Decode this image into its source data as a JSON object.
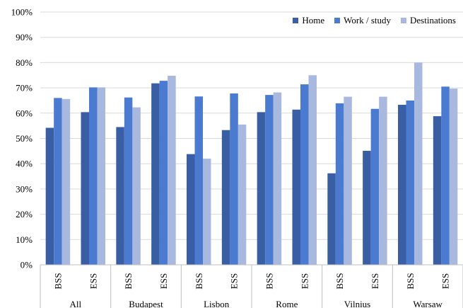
{
  "chart_data": {
    "type": "bar",
    "title": "",
    "xlabel": "",
    "ylabel": "",
    "ylim": [
      0,
      100
    ],
    "yticks": [
      0,
      10,
      20,
      30,
      40,
      50,
      60,
      70,
      80,
      90,
      100
    ],
    "ytick_labels": [
      "0%",
      "10%",
      "20%",
      "30%",
      "40%",
      "50%",
      "60%",
      "70%",
      "80%",
      "90%",
      "100%"
    ],
    "grid": true,
    "legend_position": "top-right",
    "groups": [
      "All",
      "Budapest",
      "Lisbon",
      "Rome",
      "Vilnius",
      "Warsaw"
    ],
    "subcategories": [
      "BSS",
      "ESS"
    ],
    "categories": [
      "All BSS",
      "All ESS",
      "Budapest BSS",
      "Budapest ESS",
      "Lisbon BSS",
      "Lisbon ESS",
      "Rome BSS",
      "Rome ESS",
      "Vilnius BSS",
      "Vilnius ESS",
      "Warsaw BSS",
      "Warsaw ESS"
    ],
    "series": [
      {
        "name": "Home",
        "color": "#3a5ea3",
        "values": [
          54.2,
          60.4,
          54.5,
          71.8,
          43.8,
          53.3,
          60.4,
          61.4,
          36.2,
          45.1,
          63.3,
          58.8
        ]
      },
      {
        "name": "Work / study",
        "color": "#4a7bd0",
        "values": [
          66.0,
          70.2,
          66.2,
          72.8,
          66.6,
          67.8,
          67.2,
          71.4,
          63.9,
          61.7,
          65.0,
          70.5
        ]
      },
      {
        "name": "Destinations",
        "color": "#a9b8df",
        "values": [
          65.6,
          70.2,
          62.3,
          74.8,
          42.0,
          55.5,
          68.2,
          75.0,
          66.5,
          66.5,
          80.0,
          69.7
        ]
      }
    ]
  }
}
